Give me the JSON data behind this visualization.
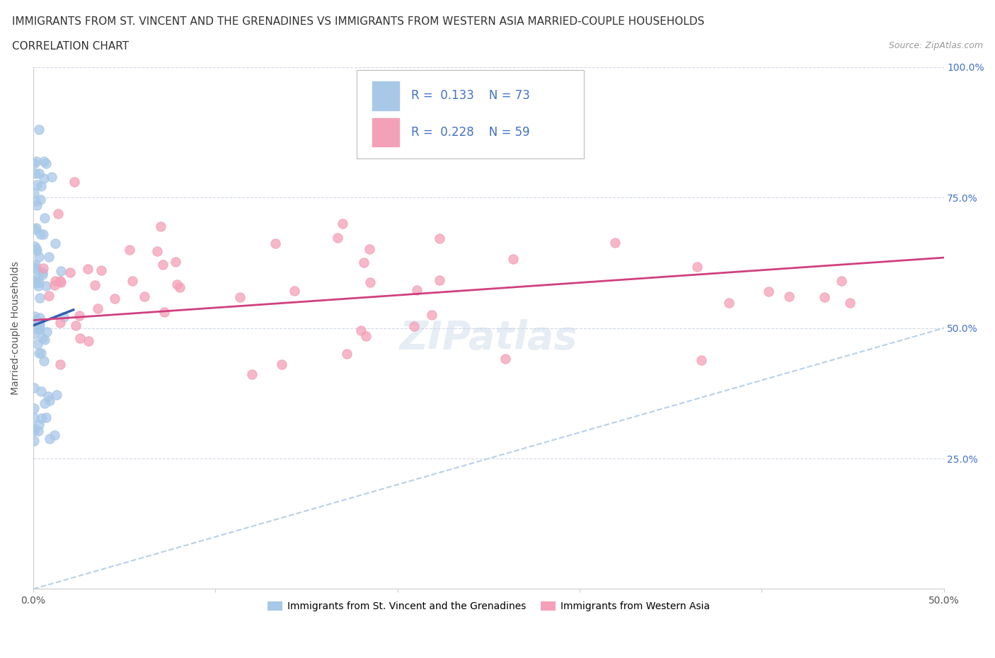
{
  "title_line1": "IMMIGRANTS FROM ST. VINCENT AND THE GRENADINES VS IMMIGRANTS FROM WESTERN ASIA MARRIED-COUPLE HOUSEHOLDS",
  "title_line2": "CORRELATION CHART",
  "source": "Source: ZipAtlas.com",
  "ylabel": "Married-couple Households",
  "xlim": [
    0,
    0.5
  ],
  "ylim": [
    0,
    1.0
  ],
  "xtick_vals": [
    0.0,
    0.1,
    0.2,
    0.3,
    0.4,
    0.5
  ],
  "ytick_vals": [
    0.0,
    0.25,
    0.5,
    0.75,
    1.0
  ],
  "xtick_labels": [
    "0.0%",
    "",
    "",
    "",
    "",
    "50.0%"
  ],
  "ytick_labels_right": [
    "",
    "25.0%",
    "50.0%",
    "75.0%",
    "100.0%"
  ],
  "legend_R1": "0.133",
  "legend_N1": "73",
  "legend_R2": "0.228",
  "legend_N2": "59",
  "color_blue": "#a8c8e8",
  "color_pink": "#f4a0b8",
  "color_blue_line": "#3060b0",
  "color_pink_line": "#d04080",
  "color_diag": "#b8d0e8",
  "label1": "Immigrants from St. Vincent and the Grenadines",
  "label2": "Immigrants from Western Asia",
  "watermark": "ZIPatlas",
  "title_fontsize": 11,
  "source_fontsize": 9,
  "axis_label_fontsize": 10,
  "tick_fontsize": 10,
  "legend_color": "#4472c4",
  "grid_color": "#d0d8e8",
  "blue_regression_x0": 0.0,
  "blue_regression_y0": 0.505,
  "blue_regression_x1": 0.022,
  "blue_regression_y1": 0.535,
  "pink_regression_x0": 0.0,
  "pink_regression_y0": 0.515,
  "pink_regression_x1": 0.5,
  "pink_regression_y1": 0.635
}
